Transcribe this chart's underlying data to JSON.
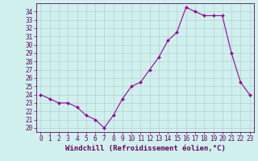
{
  "x": [
    0,
    1,
    2,
    3,
    4,
    5,
    6,
    7,
    8,
    9,
    10,
    11,
    12,
    13,
    14,
    15,
    16,
    17,
    18,
    19,
    20,
    21,
    22,
    23
  ],
  "y": [
    24.0,
    23.5,
    23.0,
    23.0,
    22.5,
    21.5,
    21.0,
    20.0,
    21.5,
    23.5,
    25.0,
    25.5,
    27.0,
    28.5,
    30.5,
    31.5,
    34.5,
    34.0,
    33.5,
    33.5,
    33.5,
    29.0,
    25.5,
    24.0
  ],
  "line_color": "#990099",
  "marker": "D",
  "marker_size": 2,
  "bg_color": "#cff0ec",
  "grid_color": "#aacccc",
  "xlabel": "Windchill (Refroidissement éolien,°C)",
  "xlim": [
    -0.5,
    23.5
  ],
  "ylim": [
    19.5,
    35.0
  ],
  "yticks": [
    20,
    21,
    22,
    23,
    24,
    25,
    26,
    27,
    28,
    29,
    30,
    31,
    32,
    33,
    34
  ],
  "xticks": [
    0,
    1,
    2,
    3,
    4,
    5,
    6,
    7,
    8,
    9,
    10,
    11,
    12,
    13,
    14,
    15,
    16,
    17,
    18,
    19,
    20,
    21,
    22,
    23
  ],
  "tick_color": "#660066",
  "label_color": "#660066",
  "spine_color": "#660066",
  "xlabel_fontsize": 6.5,
  "ytick_fontsize": 5.5,
  "xtick_fontsize": 5.5
}
